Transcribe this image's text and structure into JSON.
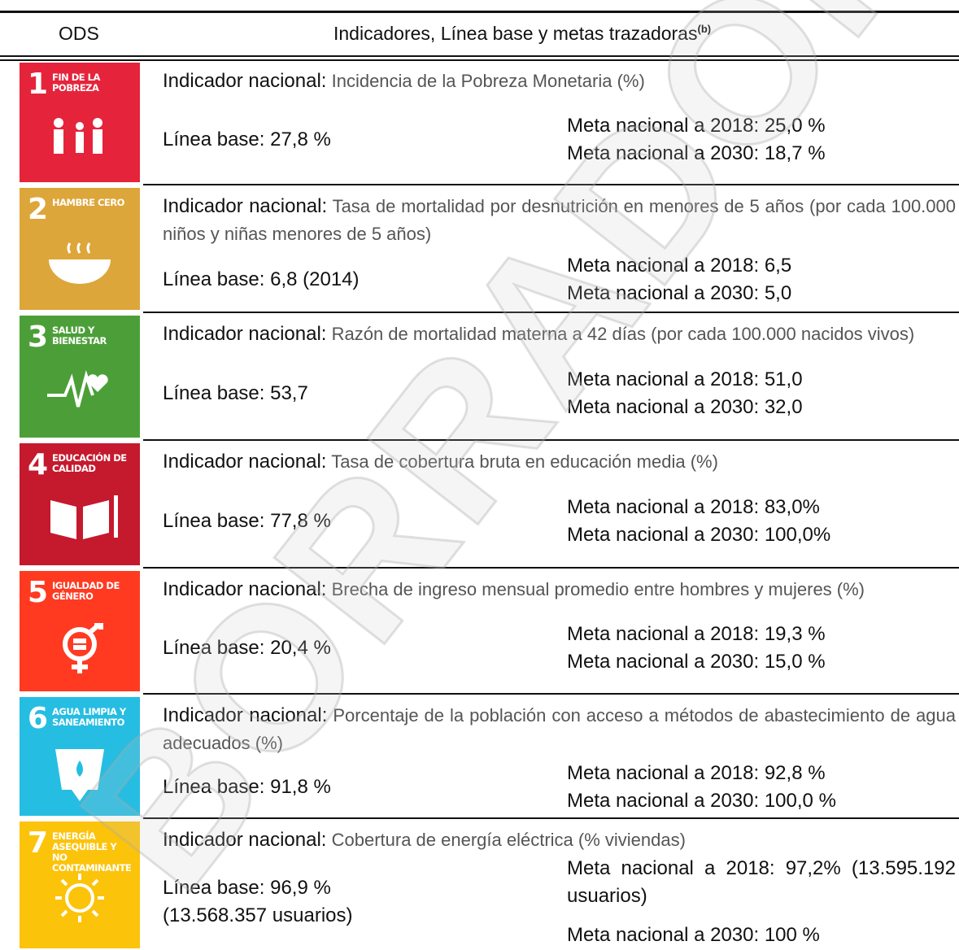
{
  "watermark": "BORRADOR",
  "header": {
    "ods": "ODS",
    "title": "Indicadores, Línea base y metas trazadoras",
    "title_note": "(b)"
  },
  "rows": [
    {
      "number": "1",
      "icon_label": "Fin de la pobreza",
      "indicator_label": "Indicador nacional:",
      "indicator": "Incidencia de la Pobreza Monetaria (%)",
      "baseline": "Línea base: 27,8 %",
      "goals": [
        "Meta nacional a 2018: 25,0 %",
        "Meta nacional a 2030: 18,7 %"
      ]
    },
    {
      "number": "2",
      "icon_label": "Hambre cero",
      "indicator_label": "Indicador nacional:",
      "indicator": "Tasa de mortalidad por desnutrición en menores de 5 años (por cada 100.000 niños y niñas menores de 5 años)",
      "baseline": "Línea base: 6,8 (2014)",
      "goals": [
        "Meta nacional a 2018: 6,5",
        "Meta nacional a 2030: 5,0"
      ]
    },
    {
      "number": "3",
      "icon_label": "Salud y bienestar",
      "indicator_label": "Indicador nacional:",
      "indicator": "Razón de mortalidad materna a 42 días (por cada 100.000 nacidos vivos)",
      "baseline": "Línea base: 53,7",
      "goals": [
        "Meta nacional a 2018: 51,0",
        "Meta nacional a 2030: 32,0"
      ]
    },
    {
      "number": "4",
      "icon_label": "Educación de calidad",
      "indicator_label": "Indicador nacional:",
      "indicator": "Tasa de cobertura bruta en educación media (%)",
      "baseline": "Línea base: 77,8 %",
      "goals": [
        "Meta nacional a 2018: 83,0%",
        "Meta nacional a 2030: 100,0%"
      ]
    },
    {
      "number": "5",
      "icon_label": "Igualdad de género",
      "indicator_label": "Indicador nacional:",
      "indicator": "Brecha de ingreso mensual promedio entre hombres y mujeres (%)",
      "baseline": "Línea base: 20,4 %",
      "goals": [
        "Meta nacional a 2018: 19,3 %",
        "Meta nacional a 2030: 15,0 %"
      ]
    },
    {
      "number": "6",
      "icon_label": "Agua limpia y saneamiento",
      "indicator_label": "Indicador nacional:",
      "indicator": "Porcentaje de la población con acceso a métodos de abastecimiento de agua adecuados (%)",
      "baseline": "Línea base: 91,8 %",
      "goals": [
        "Meta nacional a 2018: 92,8 %",
        "Meta nacional a 2030: 100,0 %"
      ]
    },
    {
      "number": "7",
      "icon_label": "Energía asequible y no contaminante",
      "indicator_label": "Indicador nacional:",
      "indicator": "Cobertura de energía eléctrica (% viviendas)",
      "baseline": "Línea base: 96,9 % (13.568.357 usuarios)",
      "goals": [
        "Meta nacional a 2018: 97,2% (13.595.192 usuarios)",
        "Meta nacional a 2030: 100 %"
      ]
    }
  ]
}
